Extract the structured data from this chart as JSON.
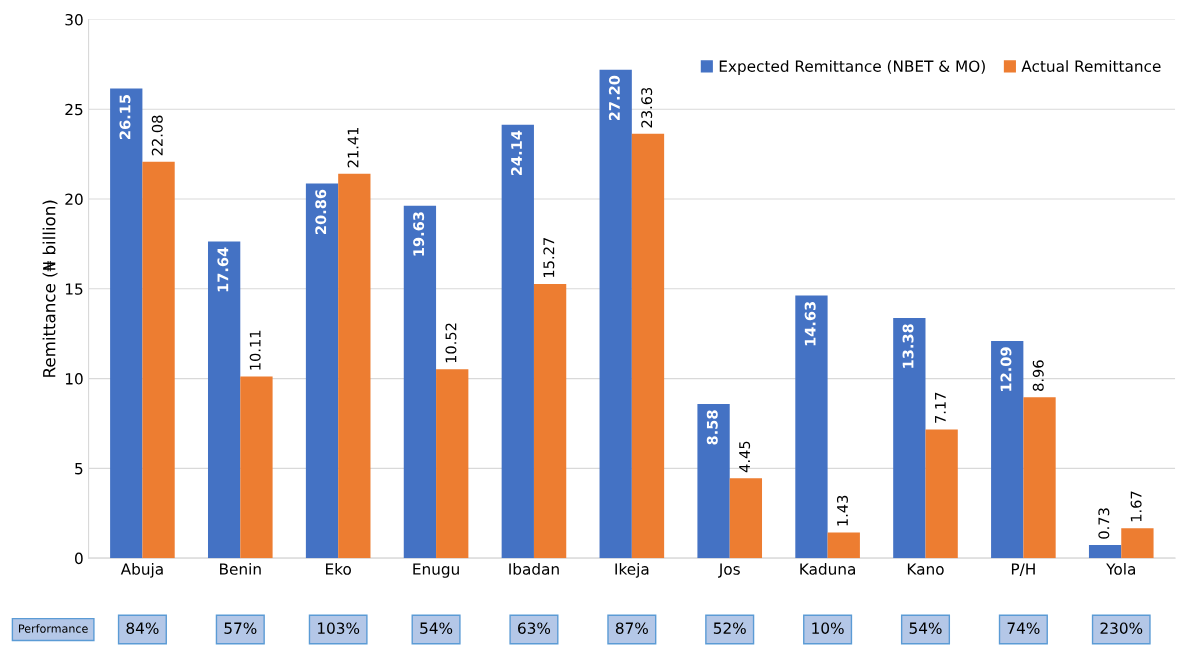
{
  "chart_data": {
    "type": "bar",
    "ylabel": "Remittance (₦ billion)",
    "categories": [
      "Abuja",
      "Benin",
      "Eko",
      "Enugu",
      "Ibadan",
      "Ikeja",
      "Jos",
      "Kaduna",
      "Kano",
      "P/H",
      "Yola"
    ],
    "series": [
      {
        "name": "Expected Remittance (NBET & MO)",
        "color": "#4472c4",
        "values": [
          26.15,
          17.64,
          20.86,
          19.63,
          24.14,
          27.2,
          8.58,
          14.63,
          13.38,
          12.09,
          0.73
        ],
        "value_labels": [
          "26.15",
          "17.64",
          "20.86",
          "19.63",
          "24.14",
          "27.20",
          "8.58",
          "14.63",
          "13.38",
          "12.09",
          "0.73"
        ]
      },
      {
        "name": "Actual Remittance",
        "color": "#ed7d31",
        "values": [
          22.08,
          10.11,
          21.41,
          10.52,
          15.27,
          23.63,
          4.45,
          1.43,
          7.17,
          8.96,
          1.67
        ],
        "value_labels": [
          "22.08",
          "10.11",
          "21.41",
          "10.52",
          "15.27",
          "23.63",
          "4.45",
          "1.43",
          "7.17",
          "8.96",
          "1.67"
        ]
      }
    ],
    "ylim": [
      0,
      30
    ],
    "yticks": [
      0,
      5,
      10,
      15,
      20,
      25,
      30
    ],
    "grid": "y",
    "legend": "top right",
    "annotations": [
      "Performance",
      "84%",
      "57%",
      "103%",
      "54%",
      "63%",
      "87%",
      "52%",
      "10%",
      "54%",
      "74%",
      "230%"
    ]
  }
}
